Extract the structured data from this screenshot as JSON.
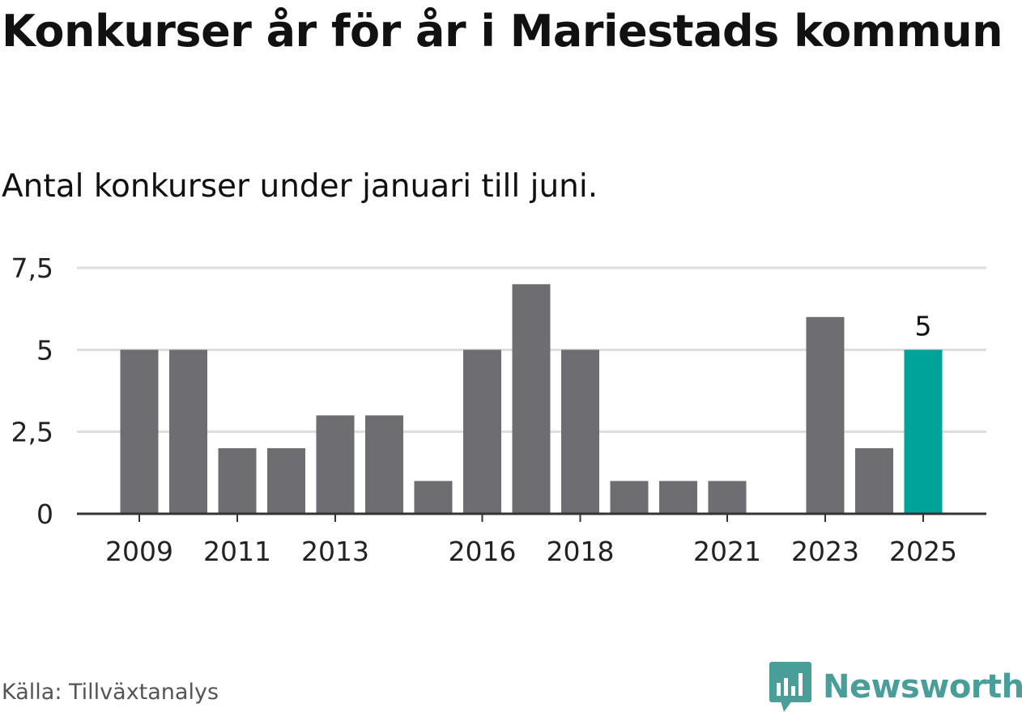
{
  "header": {
    "title": "Konkurser år för år i Mariestads kommun",
    "subtitle": "Antal konkurser under januari till juni."
  },
  "footer": {
    "source": "Källa: Tillväxtanalys",
    "brand": "Newsworthy"
  },
  "colors": {
    "bar": "#6e6d72",
    "highlight": "#00a39a",
    "grid": "#dddddd",
    "axis": "#333333",
    "brand": "#4a9e9a"
  },
  "icons": {
    "brand_logo": "newsworthy-logo-icon"
  },
  "chart_data": {
    "type": "bar",
    "title": "Konkurser år för år i Mariestads kommun",
    "subtitle": "Antal konkurser under januari till juni.",
    "categories": [
      "2009",
      "2010",
      "2011",
      "2012",
      "2013",
      "2014",
      "2015",
      "2016",
      "2017",
      "2018",
      "2019",
      "2020",
      "2021",
      "2022",
      "2023",
      "2024",
      "2025"
    ],
    "values": [
      5,
      5,
      2,
      2,
      3,
      3,
      1,
      5,
      7,
      5,
      1,
      1,
      1,
      0,
      6,
      2,
      5
    ],
    "x_tick_labels": [
      "2009",
      "2011",
      "2013",
      "2016",
      "2018",
      "2021",
      "2023",
      "2025"
    ],
    "y_ticks": [
      0,
      2.5,
      5,
      7.5
    ],
    "y_tick_labels": [
      "0",
      "2,5",
      "5",
      "7,5"
    ],
    "ylim": [
      0,
      7.5
    ],
    "highlight_category": "2025",
    "data_labels": [
      {
        "category": "2025",
        "text": "5"
      }
    ],
    "grid": true,
    "legend": "none"
  }
}
